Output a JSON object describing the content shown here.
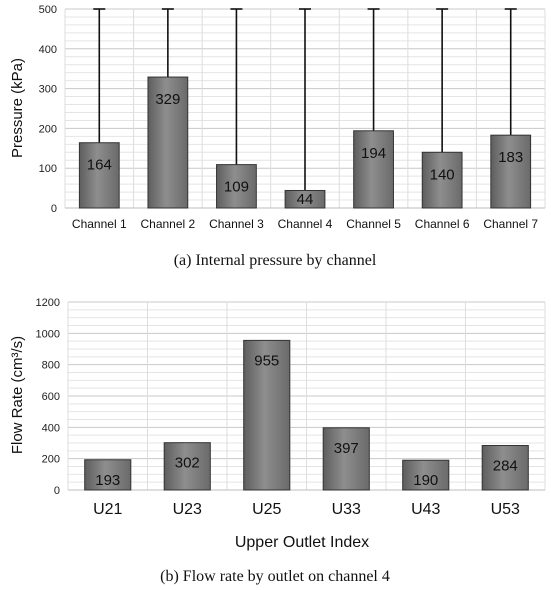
{
  "chart_data": [
    {
      "type": "bar",
      "title": "",
      "caption": "(a) Internal pressure by channel",
      "categories": [
        "Channel 1",
        "Channel 2",
        "Channel 3",
        "Channel 4",
        "Channel 5",
        "Channel 6",
        "Channel 7"
      ],
      "series": [
        {
          "values": [
            164,
            329,
            109,
            44,
            194,
            140,
            183
          ]
        }
      ],
      "data_labels": [
        "164",
        "329",
        "109",
        "44",
        "194",
        "140",
        "183"
      ],
      "xlabel": "",
      "ylabel": "Pressure (kPa)",
      "ylim": [
        0,
        500
      ],
      "yticks": [
        0,
        100,
        200,
        300,
        400,
        500
      ],
      "grid": true,
      "legend": "none",
      "error_bars_to": 500,
      "bar_color": "#7a7a7a",
      "bar_edge": "#333333"
    },
    {
      "type": "bar",
      "title": "",
      "caption": "(b) Flow rate by outlet on channel 4",
      "categories": [
        "U21",
        "U23",
        "U25",
        "U33",
        "U43",
        "U53"
      ],
      "series": [
        {
          "values": [
            193,
            302,
            955,
            397,
            190,
            284
          ]
        }
      ],
      "data_labels": [
        "193",
        "302",
        "955",
        "397",
        "190",
        "284"
      ],
      "xlabel": "Upper Outlet Index",
      "ylabel": "Flow Rate (cm³/s)",
      "ylim": [
        0,
        1200
      ],
      "yticks": [
        0,
        200,
        400,
        600,
        800,
        1000,
        1200
      ],
      "grid": true,
      "legend": "none",
      "bar_color": "#7a7a7a",
      "bar_edge": "#333333"
    }
  ]
}
